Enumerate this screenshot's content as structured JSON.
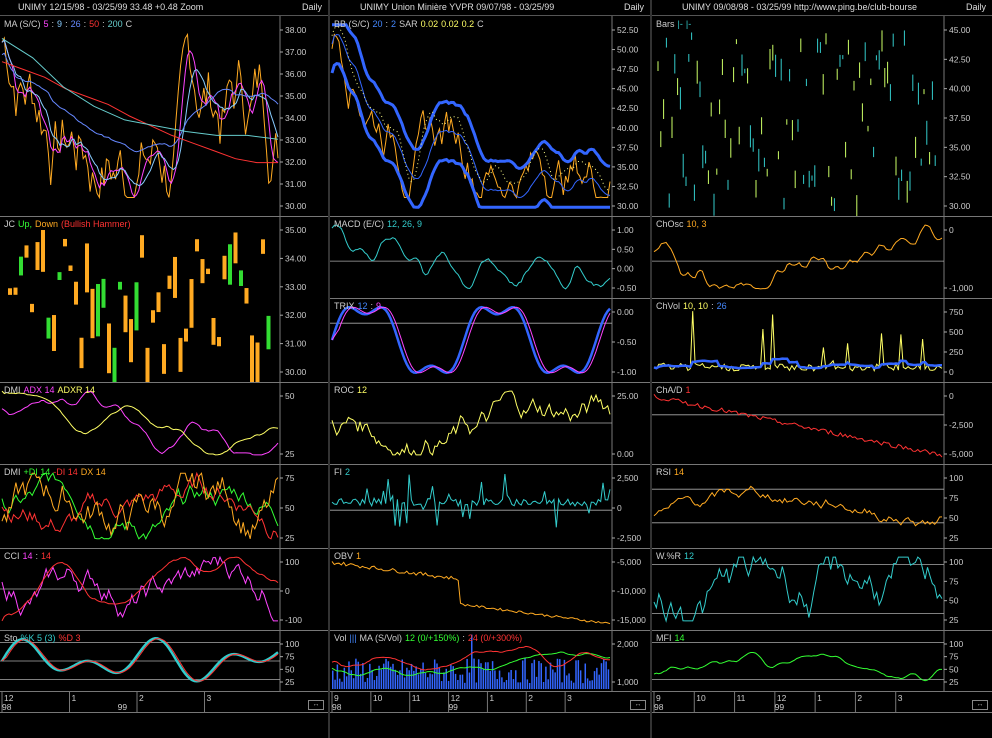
{
  "windows": [
    {
      "title": "UNIMY  12/15/98 - 03/25/99    33.48  +0.48    Zoom",
      "period": "Daily",
      "x_axis": {
        "months": [
          "12",
          "1",
          "2",
          "3"
        ],
        "year": "99",
        "start_year": "98"
      },
      "panels": [
        {
          "id": "ma",
          "labels": [
            {
              "t": "MA (S/C)",
              "c": "#ccc"
            },
            {
              "t": "5",
              "c": "#ff44ff"
            },
            {
              "t": ":",
              "c": "#ccc"
            },
            {
              "t": "9",
              "c": "#88ccff"
            },
            {
              "t": ":",
              "c": "#ccc"
            },
            {
              "t": "26",
              "c": "#6688ff"
            },
            {
              "t": ":",
              "c": "#ccc"
            },
            {
              "t": "50",
              "c": "#ff3333"
            },
            {
              "t": ":",
              "c": "#ccc"
            },
            {
              "t": "200",
              "c": "#66cccc"
            },
            {
              "t": "C",
              "c": "#ccc"
            }
          ],
          "ticks": [
            "38.00",
            "37.00",
            "36.00",
            "35.00",
            "34.00",
            "33.00",
            "32.00",
            "31.00",
            "30.00"
          ]
        },
        {
          "id": "jc",
          "labels": [
            {
              "t": "JC",
              "c": "#ccc"
            },
            {
              "t": "Up,",
              "c": "#33ff33"
            },
            {
              "t": "Down",
              "c": "#ffaa22"
            },
            {
              "t": "(Bullish Hammer)",
              "c": "#ff3333"
            }
          ],
          "ticks": [
            "35.00",
            "34.00",
            "33.00",
            "32.00",
            "31.00",
            "30.00"
          ]
        },
        {
          "id": "dmi1",
          "labels": [
            {
              "t": "DMI",
              "c": "#ccc"
            },
            {
              "t": "ADX 14",
              "c": "#ff44ff"
            },
            {
              "t": "ADXR 14",
              "c": "#ffff66"
            }
          ],
          "ticks": [
            "50",
            "25"
          ]
        },
        {
          "id": "dmi2",
          "labels": [
            {
              "t": "DMI",
              "c": "#ccc"
            },
            {
              "t": "+DI 14",
              "c": "#33ff33"
            },
            {
              "t": "-DI 14",
              "c": "#ff3333"
            },
            {
              "t": "DX 14",
              "c": "#ffaa22"
            }
          ],
          "ticks": [
            "75",
            "50",
            "25"
          ]
        },
        {
          "id": "cci",
          "labels": [
            {
              "t": "CCI",
              "c": "#ccc"
            },
            {
              "t": "14",
              "c": "#ff44ff"
            },
            {
              "t": ":",
              "c": "#ccc"
            },
            {
              "t": "14",
              "c": "#ff3333"
            }
          ],
          "ticks": [
            "100",
            "0",
            "-100"
          ]
        },
        {
          "id": "sto",
          "labels": [
            {
              "t": "Sto",
              "c": "#ccc"
            },
            {
              "t": "%K 5 (3)",
              "c": "#33cccc"
            },
            {
              "t": "%D 3",
              "c": "#ff3333"
            }
          ],
          "ticks": [
            "100",
            "75",
            "50",
            "25"
          ]
        }
      ]
    },
    {
      "title": "UNIMY  Union Minière YVPR  09/07/98 - 03/25/99",
      "period": "Daily",
      "x_axis": {
        "months": [
          "9",
          "10",
          "11",
          "12",
          "1",
          "2",
          "3"
        ],
        "year": "99",
        "start_year": "98"
      },
      "panels": [
        {
          "id": "bb",
          "labels": [
            {
              "t": "BB (S/C)",
              "c": "#ccc"
            },
            {
              "t": "20",
              "c": "#4488ff"
            },
            {
              "t": ":",
              "c": "#ccc"
            },
            {
              "t": "2",
              "c": "#4488ff"
            },
            {
              "t": "SAR",
              "c": "#ccc"
            },
            {
              "t": "0.02",
              "c": "#ffff66"
            },
            {
              "t": "0.02",
              "c": "#ffff66"
            },
            {
              "t": "0.2",
              "c": "#ffff66"
            },
            {
              "t": "C",
              "c": "#ccc"
            }
          ],
          "ticks": [
            "52.50",
            "50.00",
            "47.50",
            "45.00",
            "42.50",
            "40.00",
            "37.50",
            "35.00",
            "32.50",
            "30.00"
          ]
        },
        {
          "id": "macd",
          "labels": [
            {
              "t": "MACD (E/C)",
              "c": "#ccc"
            },
            {
              "t": "12, 26, 9",
              "c": "#33cccc"
            }
          ],
          "ticks": [
            "1.00",
            "0.50",
            "0.00",
            "-0.50"
          ]
        },
        {
          "id": "trix",
          "labels": [
            {
              "t": "TRIX",
              "c": "#ccc"
            },
            {
              "t": "12",
              "c": "#4488ff"
            },
            {
              "t": ":",
              "c": "#ccc"
            },
            {
              "t": "9",
              "c": "#ff44ff"
            }
          ],
          "ticks": [
            "0.00",
            "-0.50",
            "-1.00"
          ]
        },
        {
          "id": "roc",
          "labels": [
            {
              "t": "ROC",
              "c": "#ccc"
            },
            {
              "t": "12",
              "c": "#ffff66"
            }
          ],
          "ticks": [
            "25.00",
            "0.00"
          ]
        },
        {
          "id": "fi",
          "labels": [
            {
              "t": "FI",
              "c": "#ccc"
            },
            {
              "t": "2",
              "c": "#33cccc"
            }
          ],
          "ticks": [
            "2,500",
            "0",
            "-2,500"
          ]
        },
        {
          "id": "obv",
          "labels": [
            {
              "t": "OBV",
              "c": "#ccc"
            },
            {
              "t": "1",
              "c": "#ffaa22"
            }
          ],
          "ticks": [
            "-5,000",
            "-10,000",
            "-15,000"
          ]
        },
        {
          "id": "vol",
          "labels": [
            {
              "t": "Vol",
              "c": "#ccc"
            },
            {
              "t": "|||",
              "c": "#4488ff"
            },
            {
              "t": "MA (S/Vol)",
              "c": "#ccc"
            },
            {
              "t": "12 (0/+150%)",
              "c": "#33ff33"
            },
            {
              "t": ":",
              "c": "#ccc"
            },
            {
              "t": "24 (0/+300%)",
              "c": "#ff3333"
            }
          ],
          "ticks": [
            "2,000",
            "1,000"
          ]
        }
      ]
    },
    {
      "title": "UNIMY  09/08/98 - 03/25/99   http://www.ping.be/club-bourse",
      "period": "Daily",
      "x_axis": {
        "months": [
          "9",
          "10",
          "11",
          "12",
          "1",
          "2",
          "3"
        ],
        "year": "99",
        "start_year": "98"
      },
      "panels": [
        {
          "id": "bars",
          "labels": [
            {
              "t": "Bars",
              "c": "#ccc"
            },
            {
              "t": "|-",
              "c": "#33cccc"
            },
            {
              "t": "|-",
              "c": "#33cccc"
            }
          ],
          "ticks": [
            "45.00",
            "42.50",
            "40.00",
            "37.50",
            "35.00",
            "32.50",
            "30.00"
          ]
        },
        {
          "id": "chosc",
          "labels": [
            {
              "t": "ChOsc",
              "c": "#ccc"
            },
            {
              "t": "10, 3",
              "c": "#ffaa22"
            }
          ],
          "ticks": [
            "0",
            "-1,000"
          ]
        },
        {
          "id": "chvol",
          "labels": [
            {
              "t": "ChVol",
              "c": "#ccc"
            },
            {
              "t": "10, 10",
              "c": "#ffff66"
            },
            {
              "t": ":",
              "c": "#ccc"
            },
            {
              "t": "26",
              "c": "#4488ff"
            }
          ],
          "ticks": [
            "750",
            "500",
            "250",
            "0"
          ]
        },
        {
          "id": "chad",
          "labels": [
            {
              "t": "ChA/D",
              "c": "#ccc"
            },
            {
              "t": "1",
              "c": "#ff3333"
            }
          ],
          "ticks": [
            "0",
            "-2,500",
            "-5,000"
          ]
        },
        {
          "id": "rsi",
          "labels": [
            {
              "t": "RSI",
              "c": "#ccc"
            },
            {
              "t": "14",
              "c": "#ffaa22"
            }
          ],
          "ticks": [
            "100",
            "75",
            "50",
            "25"
          ]
        },
        {
          "id": "wr",
          "labels": [
            {
              "t": "W.%R",
              "c": "#ccc"
            },
            {
              "t": "12",
              "c": "#33cccc"
            }
          ],
          "ticks": [
            "100",
            "75",
            "50",
            "25"
          ]
        },
        {
          "id": "mfi",
          "labels": [
            {
              "t": "MFI",
              "c": "#ccc"
            },
            {
              "t": "14",
              "c": "#33ff33"
            }
          ],
          "ticks": [
            "100",
            "75",
            "50",
            "25"
          ]
        }
      ]
    }
  ]
}
